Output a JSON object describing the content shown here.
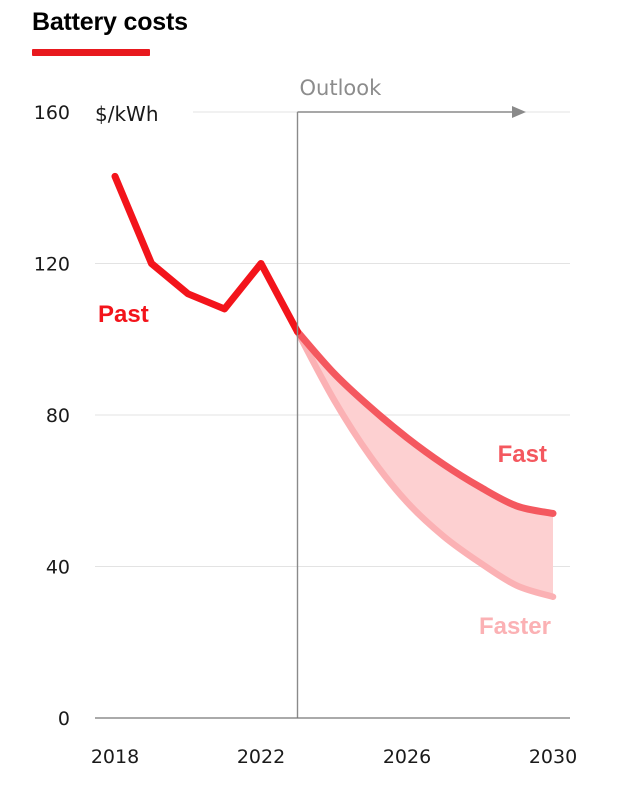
{
  "chart_data": {
    "type": "line",
    "title": "Battery costs",
    "ylabel": "$/kWh",
    "ylim": [
      0,
      160
    ],
    "yticks": [
      0,
      40,
      80,
      120,
      160
    ],
    "xlim": [
      2017.5,
      2030
    ],
    "xticks": [
      "2018",
      "2022",
      "2026",
      "2030"
    ],
    "annotation": "Outlook",
    "outlook_start": 2023,
    "series": [
      {
        "name": "Past",
        "color": "#f3141b",
        "x": [
          2018,
          2019,
          2020,
          2021,
          2022,
          2023
        ],
        "values": [
          143,
          120,
          112,
          108,
          120,
          102
        ]
      },
      {
        "name": "Fast",
        "color": "#f4585f",
        "x": [
          2023,
          2024,
          2025,
          2026,
          2027,
          2028,
          2029,
          2030
        ],
        "values": [
          102,
          91,
          82,
          74,
          67,
          61,
          56,
          54
        ]
      },
      {
        "name": "Faster",
        "color": "#fbb1b4",
        "x": [
          2023,
          2024,
          2025,
          2026,
          2027,
          2028,
          2029,
          2030
        ],
        "values": [
          102,
          84,
          69,
          57,
          48,
          41,
          35,
          32
        ]
      }
    ],
    "band_color": "#fdd0d1"
  }
}
